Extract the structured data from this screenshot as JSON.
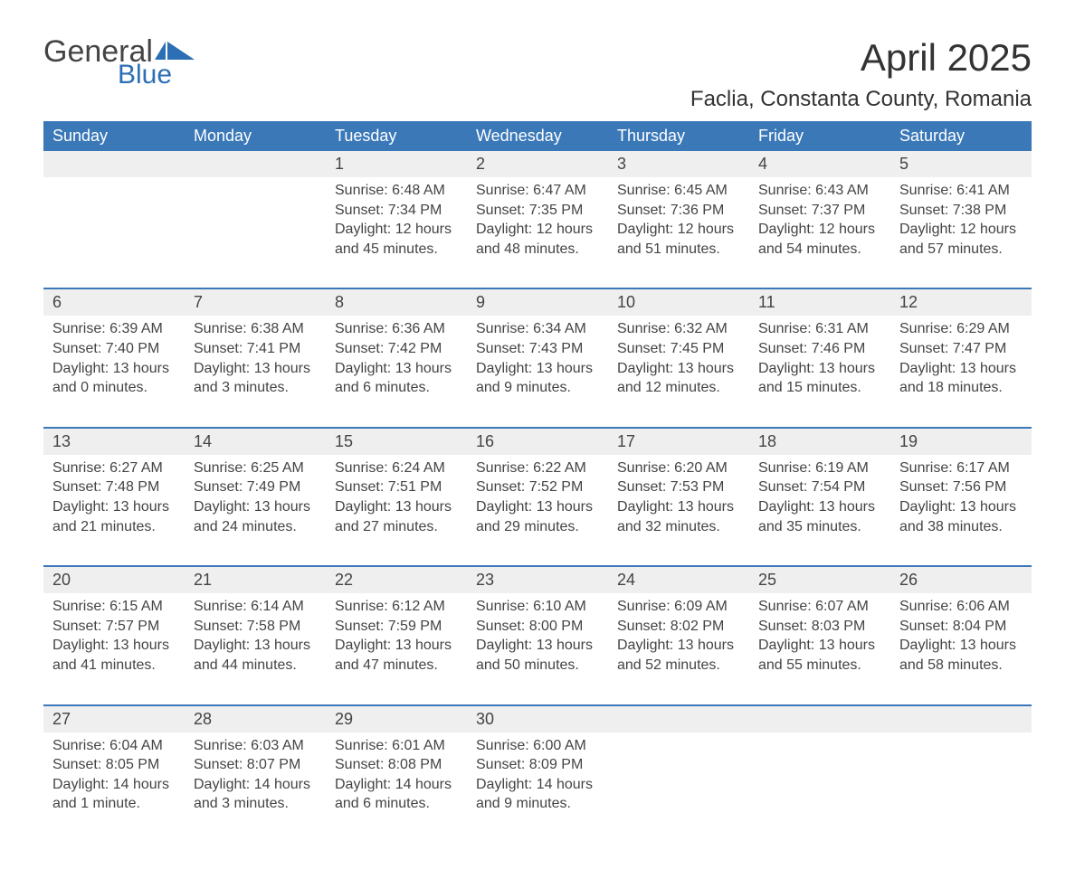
{
  "brand": {
    "word1": "General",
    "word2": "Blue"
  },
  "title": "April 2025",
  "location": "Faclia, Constanta County, Romania",
  "colors": {
    "header_bg": "#3a78b8",
    "header_text": "#ffffff",
    "daynum_bg": "#efefef",
    "row_border": "#3a78b8",
    "body_text": "#444444",
    "logo_blue": "#2c6fb5",
    "page_bg": "#ffffff"
  },
  "typography": {
    "title_fontsize": 42,
    "location_fontsize": 24,
    "header_fontsize": 18,
    "daynum_fontsize": 18,
    "cell_fontsize": 16
  },
  "layout": {
    "columns": 7,
    "rows": 5,
    "first_day_column_index": 2,
    "days_in_month": 30
  },
  "day_headers": [
    "Sunday",
    "Monday",
    "Tuesday",
    "Wednesday",
    "Thursday",
    "Friday",
    "Saturday"
  ],
  "weeks": [
    [
      null,
      null,
      {
        "n": "1",
        "sunrise": "Sunrise: 6:48 AM",
        "sunset": "Sunset: 7:34 PM",
        "dl1": "Daylight: 12 hours",
        "dl2": "and 45 minutes."
      },
      {
        "n": "2",
        "sunrise": "Sunrise: 6:47 AM",
        "sunset": "Sunset: 7:35 PM",
        "dl1": "Daylight: 12 hours",
        "dl2": "and 48 minutes."
      },
      {
        "n": "3",
        "sunrise": "Sunrise: 6:45 AM",
        "sunset": "Sunset: 7:36 PM",
        "dl1": "Daylight: 12 hours",
        "dl2": "and 51 minutes."
      },
      {
        "n": "4",
        "sunrise": "Sunrise: 6:43 AM",
        "sunset": "Sunset: 7:37 PM",
        "dl1": "Daylight: 12 hours",
        "dl2": "and 54 minutes."
      },
      {
        "n": "5",
        "sunrise": "Sunrise: 6:41 AM",
        "sunset": "Sunset: 7:38 PM",
        "dl1": "Daylight: 12 hours",
        "dl2": "and 57 minutes."
      }
    ],
    [
      {
        "n": "6",
        "sunrise": "Sunrise: 6:39 AM",
        "sunset": "Sunset: 7:40 PM",
        "dl1": "Daylight: 13 hours",
        "dl2": "and 0 minutes."
      },
      {
        "n": "7",
        "sunrise": "Sunrise: 6:38 AM",
        "sunset": "Sunset: 7:41 PM",
        "dl1": "Daylight: 13 hours",
        "dl2": "and 3 minutes."
      },
      {
        "n": "8",
        "sunrise": "Sunrise: 6:36 AM",
        "sunset": "Sunset: 7:42 PM",
        "dl1": "Daylight: 13 hours",
        "dl2": "and 6 minutes."
      },
      {
        "n": "9",
        "sunrise": "Sunrise: 6:34 AM",
        "sunset": "Sunset: 7:43 PM",
        "dl1": "Daylight: 13 hours",
        "dl2": "and 9 minutes."
      },
      {
        "n": "10",
        "sunrise": "Sunrise: 6:32 AM",
        "sunset": "Sunset: 7:45 PM",
        "dl1": "Daylight: 13 hours",
        "dl2": "and 12 minutes."
      },
      {
        "n": "11",
        "sunrise": "Sunrise: 6:31 AM",
        "sunset": "Sunset: 7:46 PM",
        "dl1": "Daylight: 13 hours",
        "dl2": "and 15 minutes."
      },
      {
        "n": "12",
        "sunrise": "Sunrise: 6:29 AM",
        "sunset": "Sunset: 7:47 PM",
        "dl1": "Daylight: 13 hours",
        "dl2": "and 18 minutes."
      }
    ],
    [
      {
        "n": "13",
        "sunrise": "Sunrise: 6:27 AM",
        "sunset": "Sunset: 7:48 PM",
        "dl1": "Daylight: 13 hours",
        "dl2": "and 21 minutes."
      },
      {
        "n": "14",
        "sunrise": "Sunrise: 6:25 AM",
        "sunset": "Sunset: 7:49 PM",
        "dl1": "Daylight: 13 hours",
        "dl2": "and 24 minutes."
      },
      {
        "n": "15",
        "sunrise": "Sunrise: 6:24 AM",
        "sunset": "Sunset: 7:51 PM",
        "dl1": "Daylight: 13 hours",
        "dl2": "and 27 minutes."
      },
      {
        "n": "16",
        "sunrise": "Sunrise: 6:22 AM",
        "sunset": "Sunset: 7:52 PM",
        "dl1": "Daylight: 13 hours",
        "dl2": "and 29 minutes."
      },
      {
        "n": "17",
        "sunrise": "Sunrise: 6:20 AM",
        "sunset": "Sunset: 7:53 PM",
        "dl1": "Daylight: 13 hours",
        "dl2": "and 32 minutes."
      },
      {
        "n": "18",
        "sunrise": "Sunrise: 6:19 AM",
        "sunset": "Sunset: 7:54 PM",
        "dl1": "Daylight: 13 hours",
        "dl2": "and 35 minutes."
      },
      {
        "n": "19",
        "sunrise": "Sunrise: 6:17 AM",
        "sunset": "Sunset: 7:56 PM",
        "dl1": "Daylight: 13 hours",
        "dl2": "and 38 minutes."
      }
    ],
    [
      {
        "n": "20",
        "sunrise": "Sunrise: 6:15 AM",
        "sunset": "Sunset: 7:57 PM",
        "dl1": "Daylight: 13 hours",
        "dl2": "and 41 minutes."
      },
      {
        "n": "21",
        "sunrise": "Sunrise: 6:14 AM",
        "sunset": "Sunset: 7:58 PM",
        "dl1": "Daylight: 13 hours",
        "dl2": "and 44 minutes."
      },
      {
        "n": "22",
        "sunrise": "Sunrise: 6:12 AM",
        "sunset": "Sunset: 7:59 PM",
        "dl1": "Daylight: 13 hours",
        "dl2": "and 47 minutes."
      },
      {
        "n": "23",
        "sunrise": "Sunrise: 6:10 AM",
        "sunset": "Sunset: 8:00 PM",
        "dl1": "Daylight: 13 hours",
        "dl2": "and 50 minutes."
      },
      {
        "n": "24",
        "sunrise": "Sunrise: 6:09 AM",
        "sunset": "Sunset: 8:02 PM",
        "dl1": "Daylight: 13 hours",
        "dl2": "and 52 minutes."
      },
      {
        "n": "25",
        "sunrise": "Sunrise: 6:07 AM",
        "sunset": "Sunset: 8:03 PM",
        "dl1": "Daylight: 13 hours",
        "dl2": "and 55 minutes."
      },
      {
        "n": "26",
        "sunrise": "Sunrise: 6:06 AM",
        "sunset": "Sunset: 8:04 PM",
        "dl1": "Daylight: 13 hours",
        "dl2": "and 58 minutes."
      }
    ],
    [
      {
        "n": "27",
        "sunrise": "Sunrise: 6:04 AM",
        "sunset": "Sunset: 8:05 PM",
        "dl1": "Daylight: 14 hours",
        "dl2": "and 1 minute."
      },
      {
        "n": "28",
        "sunrise": "Sunrise: 6:03 AM",
        "sunset": "Sunset: 8:07 PM",
        "dl1": "Daylight: 14 hours",
        "dl2": "and 3 minutes."
      },
      {
        "n": "29",
        "sunrise": "Sunrise: 6:01 AM",
        "sunset": "Sunset: 8:08 PM",
        "dl1": "Daylight: 14 hours",
        "dl2": "and 6 minutes."
      },
      {
        "n": "30",
        "sunrise": "Sunrise: 6:00 AM",
        "sunset": "Sunset: 8:09 PM",
        "dl1": "Daylight: 14 hours",
        "dl2": "and 9 minutes."
      },
      null,
      null,
      null
    ]
  ]
}
